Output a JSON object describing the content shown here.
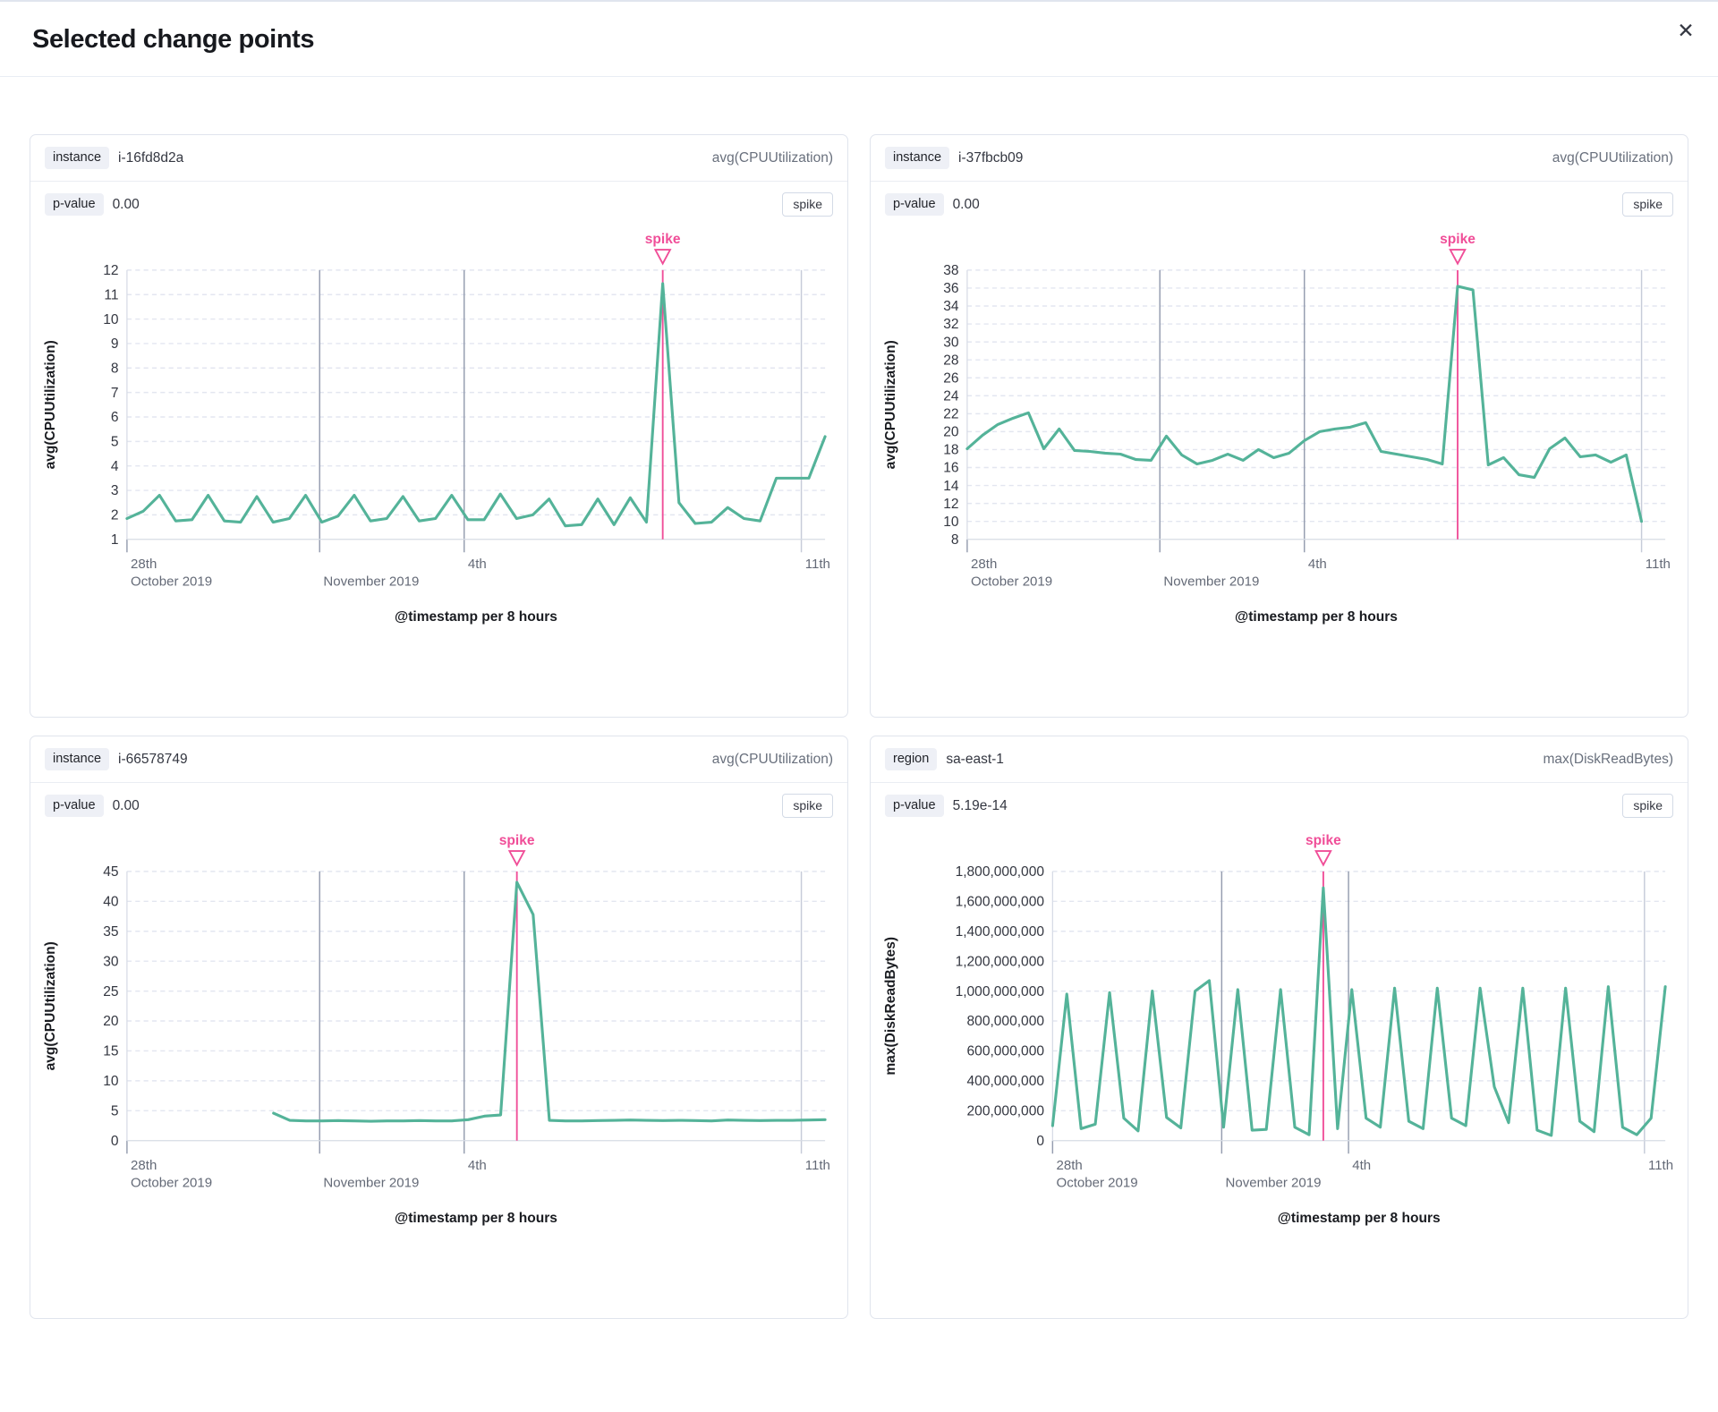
{
  "modal": {
    "title": "Selected change points",
    "close_label": "✕"
  },
  "colors": {
    "series_green": "#54b399",
    "accent_pink": "#f04e98",
    "grid_dashed": "#e3e6f0",
    "grid_dark": "#959daf",
    "grid_light": "#c6cbd8",
    "axis_line": "#d6dbe5",
    "y_tick_text": "#343741",
    "x_tick_text": "#646a77",
    "axis_title_text": "#1a1c21"
  },
  "panels": [
    {
      "group_field": "instance",
      "group_value": "i-16fd8d2a",
      "metric": "avg(CPUUtilization)",
      "p_value_label": "p-value",
      "p_value": "0.00",
      "change_type": "spike"
    },
    {
      "group_field": "instance",
      "group_value": "i-37fbcb09",
      "metric": "avg(CPUUtilization)",
      "p_value_label": "p-value",
      "p_value": "0.00",
      "change_type": "spike"
    },
    {
      "group_field": "instance",
      "group_value": "i-66578749",
      "metric": "avg(CPUUtilization)",
      "p_value_label": "p-value",
      "p_value": "0.00",
      "change_type": "spike"
    },
    {
      "group_field": "region",
      "group_value": "sa-east-1",
      "metric": "max(DiskReadBytes)",
      "p_value_label": "p-value",
      "p_value": "5.19e-14",
      "change_type": "spike"
    }
  ],
  "chart_data": [
    {
      "type": "line",
      "ylabel": "avg(CPUUtilization)",
      "xlabel": "@timestamp per 8 hours",
      "annotation": "spike",
      "ylim": [
        1,
        12
      ],
      "y_tick_step": 1,
      "y_format": "plain",
      "y_width": 104,
      "x_start_frac": 0.0,
      "x_end_frac": 1.0,
      "spike_index": 33,
      "x_ticks": [
        {
          "frac": 0.0,
          "top": "28th",
          "bottom": "October 2019",
          "grid": "tick"
        },
        {
          "frac": 0.276,
          "top": "",
          "bottom": "November 2019",
          "grid": "dark"
        },
        {
          "frac": 0.483,
          "top": "4th",
          "bottom": "",
          "grid": "dark"
        },
        {
          "frac": 0.966,
          "top": "11th",
          "bottom": "",
          "grid": "light"
        }
      ],
      "values": [
        1.85,
        2.15,
        2.8,
        1.75,
        1.8,
        2.8,
        1.75,
        1.7,
        2.75,
        1.7,
        1.85,
        2.8,
        1.7,
        1.95,
        2.8,
        1.75,
        1.85,
        2.75,
        1.75,
        1.85,
        2.8,
        1.8,
        1.8,
        2.85,
        1.85,
        2.0,
        2.65,
        1.55,
        1.6,
        2.65,
        1.6,
        2.7,
        1.7,
        11.45,
        2.5,
        1.65,
        1.7,
        2.3,
        1.85,
        1.75,
        3.5,
        3.5,
        3.5,
        5.2
      ]
    },
    {
      "type": "line",
      "ylabel": "avg(CPUUtilization)",
      "xlabel": "@timestamp per 8 hours",
      "annotation": "spike",
      "ylim": [
        8,
        38
      ],
      "y_tick_step": 2,
      "y_format": "plain",
      "y_width": 104,
      "x_start_frac": 0.0,
      "x_end_frac": 0.966,
      "spike_index": 32,
      "x_ticks": [
        {
          "frac": 0.0,
          "top": "28th",
          "bottom": "October 2019",
          "grid": "tick"
        },
        {
          "frac": 0.276,
          "top": "",
          "bottom": "November 2019",
          "grid": "dark"
        },
        {
          "frac": 0.483,
          "top": "4th",
          "bottom": "",
          "grid": "dark"
        },
        {
          "frac": 0.966,
          "top": "11th",
          "bottom": "",
          "grid": "light"
        }
      ],
      "values": [
        18.1,
        19.6,
        20.8,
        21.5,
        22.1,
        18.1,
        20.3,
        17.9,
        17.8,
        17.6,
        17.5,
        16.9,
        16.8,
        19.5,
        17.4,
        16.4,
        16.8,
        17.5,
        16.8,
        18.0,
        17.1,
        17.6,
        19.0,
        20.0,
        20.3,
        20.5,
        21.0,
        17.8,
        17.5,
        17.2,
        16.9,
        16.4,
        36.2,
        35.8,
        16.3,
        17.1,
        15.2,
        14.9,
        18.1,
        19.3,
        17.2,
        17.4,
        16.6,
        17.4,
        10.0
      ]
    },
    {
      "type": "line",
      "ylabel": "avg(CPUUtilization)",
      "xlabel": "@timestamp per 8 hours",
      "annotation": "spike",
      "ylim": [
        0,
        45
      ],
      "y_tick_step": 5,
      "y_format": "plain",
      "y_width": 104,
      "x_start_frac": 0.21,
      "x_end_frac": 1.0,
      "spike_index": 15,
      "x_ticks": [
        {
          "frac": 0.0,
          "top": "28th",
          "bottom": "October 2019",
          "grid": "tick"
        },
        {
          "frac": 0.276,
          "top": "",
          "bottom": "November 2019",
          "grid": "dark"
        },
        {
          "frac": 0.483,
          "top": "4th",
          "bottom": "",
          "grid": "dark"
        },
        {
          "frac": 0.966,
          "top": "11th",
          "bottom": "",
          "grid": "light"
        }
      ],
      "values": [
        4.6,
        3.4,
        3.3,
        3.3,
        3.35,
        3.3,
        3.25,
        3.3,
        3.3,
        3.35,
        3.3,
        3.3,
        3.5,
        4.1,
        4.3,
        43.2,
        37.8,
        3.4,
        3.3,
        3.3,
        3.35,
        3.4,
        3.45,
        3.4,
        3.35,
        3.4,
        3.35,
        3.3,
        3.45,
        3.4,
        3.35,
        3.4,
        3.4,
        3.45,
        3.5
      ]
    },
    {
      "type": "line",
      "ylabel": "max(DiskReadBytes)",
      "xlabel": "@timestamp per 8 hours",
      "annotation": "spike",
      "ylim": [
        0,
        1800000000
      ],
      "y_tick_step": 200000000,
      "y_format": "comma",
      "y_width": 196,
      "x_start_frac": 0.0,
      "x_end_frac": 1.0,
      "spike_index": 19,
      "x_ticks": [
        {
          "frac": 0.0,
          "top": "28th",
          "bottom": "October 2019",
          "grid": "tick"
        },
        {
          "frac": 0.276,
          "top": "",
          "bottom": "November 2019",
          "grid": "dark"
        },
        {
          "frac": 0.483,
          "top": "4th",
          "bottom": "",
          "grid": "dark"
        },
        {
          "frac": 0.966,
          "top": "11th",
          "bottom": "",
          "grid": "light"
        }
      ],
      "values": [
        100000000,
        980000000,
        80000000,
        110000000,
        990000000,
        150000000,
        65000000,
        1000000000,
        155000000,
        85000000,
        1000000000,
        1070000000,
        90000000,
        1010000000,
        70000000,
        75000000,
        1010000000,
        90000000,
        40000000,
        1690000000,
        80000000,
        1010000000,
        150000000,
        90000000,
        1020000000,
        130000000,
        80000000,
        1020000000,
        150000000,
        100000000,
        1020000000,
        360000000,
        120000000,
        1020000000,
        70000000,
        35000000,
        1020000000,
        130000000,
        60000000,
        1030000000,
        90000000,
        40000000,
        150000000,
        1030000000
      ]
    }
  ]
}
